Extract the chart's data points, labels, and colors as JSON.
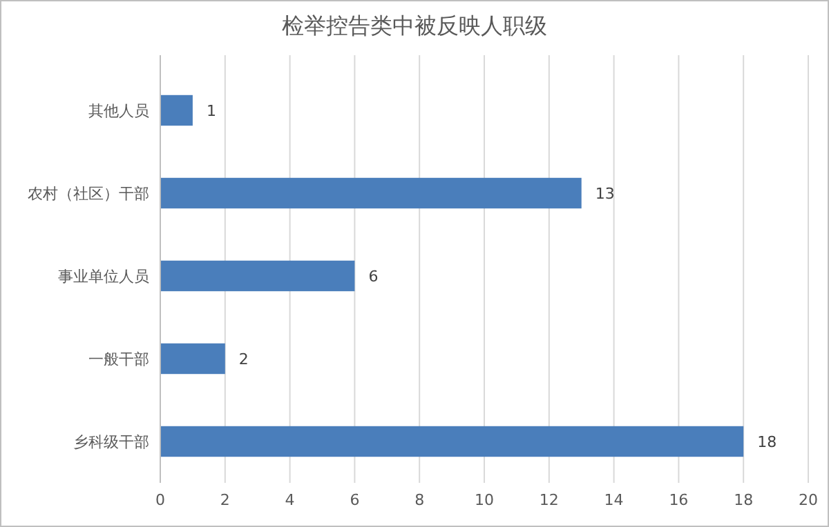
{
  "chart_data": {
    "type": "bar",
    "orientation": "horizontal",
    "title": "检举控告类中被反映人职级",
    "categories": [
      "其他人员",
      "农村（社区）干部",
      "事业单位人员",
      "一般干部",
      "乡科级干部"
    ],
    "values": [
      1,
      13,
      6,
      2,
      18
    ],
    "color": "#4a7ebb",
    "data_labels": true,
    "xlim": [
      0,
      20
    ],
    "xticks": [
      0,
      2,
      4,
      6,
      8,
      10,
      12,
      14,
      16,
      18,
      20
    ],
    "grid": "x"
  }
}
